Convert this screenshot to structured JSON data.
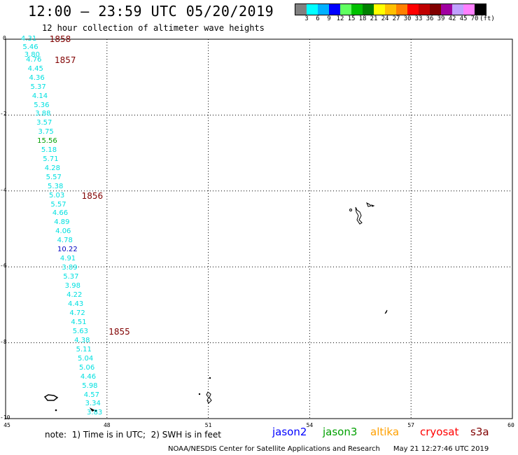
{
  "header": {
    "title": "12:00 – 23:59 UTC 05/20/2019",
    "subtitle": "12 hour collection of altimeter wave heights"
  },
  "colorbar": {
    "colors": [
      "#808080",
      "#00ffff",
      "#00b0ff",
      "#0000ff",
      "#60ff60",
      "#00c000",
      "#008000",
      "#ffff00",
      "#ffc000",
      "#ff8000",
      "#ff0000",
      "#c00000",
      "#800000",
      "#a000a0",
      "#c0a0ff",
      "#ff80ff",
      "#000000"
    ],
    "labels": [
      "3",
      "6",
      "9",
      "12",
      "15",
      "18",
      "21",
      "24",
      "27",
      "30",
      "33",
      "36",
      "39",
      "42",
      "45",
      "70",
      "(ft)"
    ]
  },
  "axes": {
    "y_ticks": [
      "0",
      "-2",
      "-4",
      "-6",
      "-8",
      "-10"
    ],
    "x_ticks": [
      "45",
      "48",
      "51",
      "54",
      "57",
      "60"
    ],
    "y_values": [
      0,
      -2,
      -4,
      -6,
      -8,
      -10
    ],
    "x_values": [
      45,
      48,
      51,
      54,
      57,
      60
    ]
  },
  "wave_heights": [
    {
      "label": "4.31",
      "color": "#00e0e0",
      "lon": 45.62,
      "lat": 0.0
    },
    {
      "label": "5.46",
      "color": "#00e0e0",
      "lon": 45.67,
      "lat": -0.23
    },
    {
      "label": "3.80",
      "color": "#00e0e0",
      "lon": 45.72,
      "lat": -0.43
    },
    {
      "label": "4.76",
      "color": "#00e0e0",
      "lon": 45.77,
      "lat": -0.56
    },
    {
      "label": "4.45",
      "color": "#00e0e0",
      "lon": 45.82,
      "lat": -0.8
    },
    {
      "label": "4.36",
      "color": "#00e0e0",
      "lon": 45.86,
      "lat": -1.04
    },
    {
      "label": "5.37",
      "color": "#00e0e0",
      "lon": 45.9,
      "lat": -1.28
    },
    {
      "label": "4.14",
      "color": "#00e0e0",
      "lon": 45.95,
      "lat": -1.52
    },
    {
      "label": "5.36",
      "color": "#00e0e0",
      "lon": 46.0,
      "lat": -1.76
    },
    {
      "label": "3.88",
      "color": "#00e0e0",
      "lon": 46.04,
      "lat": -1.98
    },
    {
      "label": "3.57",
      "color": "#00e0e0",
      "lon": 46.08,
      "lat": -2.22
    },
    {
      "label": "3.75",
      "color": "#00e0e0",
      "lon": 46.13,
      "lat": -2.46
    },
    {
      "label": "15.56",
      "color": "#00a000",
      "lon": 46.1,
      "lat": -2.7
    },
    {
      "label": "5.18",
      "color": "#00e0e0",
      "lon": 46.22,
      "lat": -2.93
    },
    {
      "label": "5.71",
      "color": "#00e0e0",
      "lon": 46.27,
      "lat": -3.17
    },
    {
      "label": "4.28",
      "color": "#00e0e0",
      "lon": 46.32,
      "lat": -3.41
    },
    {
      "label": "5.57",
      "color": "#00e0e0",
      "lon": 46.36,
      "lat": -3.65
    },
    {
      "label": "5.38",
      "color": "#00e0e0",
      "lon": 46.41,
      "lat": -3.89
    },
    {
      "label": "5.03",
      "color": "#00e0e0",
      "lon": 46.45,
      "lat": -4.13
    },
    {
      "label": "5.57",
      "color": "#00e0e0",
      "lon": 46.5,
      "lat": -4.37
    },
    {
      "label": "4.66",
      "color": "#00e0e0",
      "lon": 46.55,
      "lat": -4.6
    },
    {
      "label": "4.89",
      "color": "#00e0e0",
      "lon": 46.6,
      "lat": -4.84
    },
    {
      "label": "4.06",
      "color": "#00e0e0",
      "lon": 46.64,
      "lat": -5.08
    },
    {
      "label": "4.78",
      "color": "#00e0e0",
      "lon": 46.69,
      "lat": -5.32
    },
    {
      "label": "10.22",
      "color": "#0000c0",
      "lon": 46.7,
      "lat": -5.56
    },
    {
      "label": "4.91",
      "color": "#00e0e0",
      "lon": 46.78,
      "lat": -5.8
    },
    {
      "label": "3.89",
      "color": "#00e0e0",
      "lon": 46.83,
      "lat": -6.04
    },
    {
      "label": "5.37",
      "color": "#00e0e0",
      "lon": 46.87,
      "lat": -6.28
    },
    {
      "label": "3.98",
      "color": "#00e0e0",
      "lon": 46.92,
      "lat": -6.52
    },
    {
      "label": "4.22",
      "color": "#00e0e0",
      "lon": 46.97,
      "lat": -6.76
    },
    {
      "label": "4.43",
      "color": "#00e0e0",
      "lon": 47.01,
      "lat": -6.99
    },
    {
      "label": "4.72",
      "color": "#00e0e0",
      "lon": 47.06,
      "lat": -7.23
    },
    {
      "label": "4.51",
      "color": "#00e0e0",
      "lon": 47.1,
      "lat": -7.47
    },
    {
      "label": "5.63",
      "color": "#00e0e0",
      "lon": 47.15,
      "lat": -7.71
    },
    {
      "label": "4.38",
      "color": "#00e0e0",
      "lon": 47.2,
      "lat": -7.95
    },
    {
      "label": "5.11",
      "color": "#00e0e0",
      "lon": 47.25,
      "lat": -8.19
    },
    {
      "label": "5.04",
      "color": "#00e0e0",
      "lon": 47.3,
      "lat": -8.43
    },
    {
      "label": "5.06",
      "color": "#00e0e0",
      "lon": 47.34,
      "lat": -8.67
    },
    {
      "label": "4.46",
      "color": "#00e0e0",
      "lon": 47.38,
      "lat": -8.91
    },
    {
      "label": "5.98",
      "color": "#00e0e0",
      "lon": 47.43,
      "lat": -9.15
    },
    {
      "label": "4.57",
      "color": "#00e0e0",
      "lon": 47.48,
      "lat": -9.39
    },
    {
      "label": "3.34",
      "color": "#00e0e0",
      "lon": 47.52,
      "lat": -9.62
    },
    {
      "label": "3.83",
      "color": "#00e0e0",
      "lon": 47.57,
      "lat": -9.86
    }
  ],
  "orbits": [
    {
      "label": "1858",
      "lon": 46.3,
      "lat": 0.0
    },
    {
      "label": "1857",
      "lon": 46.45,
      "lat": -0.56
    },
    {
      "label": "1856",
      "lon": 47.25,
      "lat": -4.13
    },
    {
      "label": "1855",
      "lon": 48.05,
      "lat": -7.71
    }
  ],
  "footer": {
    "note": "note:  1) Time is in UTC;  2) SWH is in feet",
    "credit": "NOAA/NESDIS Center for Satellite Applications and Research      May 21 12:27:46 UTC 2019"
  },
  "legend": [
    {
      "name": "jason2",
      "color": "#0000ff"
    },
    {
      "name": "jason3",
      "color": "#00a000"
    },
    {
      "name": "altika",
      "color": "#ffa000"
    },
    {
      "name": "cryosat",
      "color": "#ff0000"
    },
    {
      "name": "s3a",
      "color": "#800000"
    }
  ]
}
